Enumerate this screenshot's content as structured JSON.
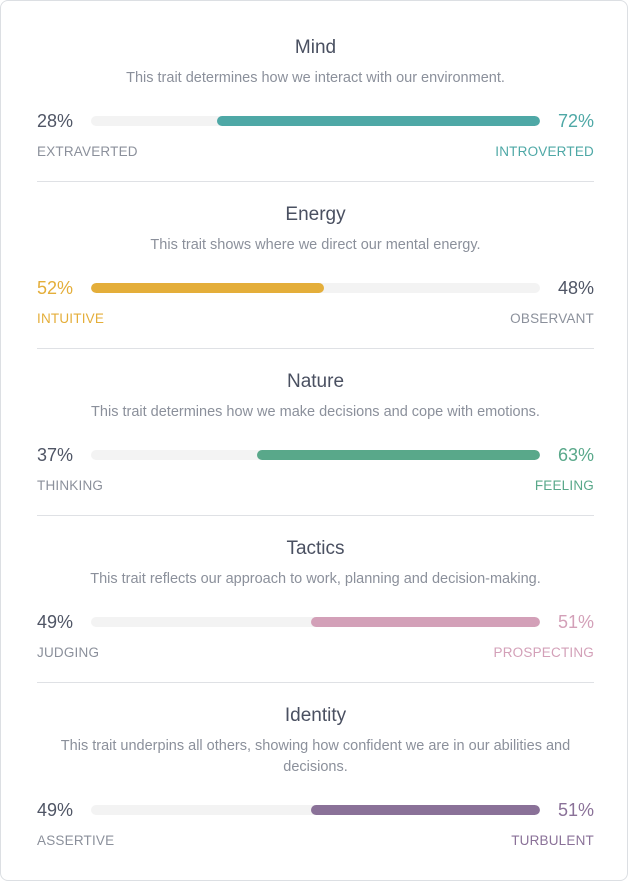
{
  "traits": [
    {
      "title": "Mind",
      "description": "This trait determines how we interact with our environment.",
      "left_label": "EXTRAVERTED",
      "right_label": "INTROVERTED",
      "left_pct": "28%",
      "right_pct": "72%",
      "dominant": "right",
      "dominant_value": 72,
      "color": "#4ea8a6"
    },
    {
      "title": "Energy",
      "description": "This trait shows where we direct our mental energy.",
      "left_label": "INTUITIVE",
      "right_label": "OBSERVANT",
      "left_pct": "52%",
      "right_pct": "48%",
      "dominant": "left",
      "dominant_value": 52,
      "color": "#e4ae3a"
    },
    {
      "title": "Nature",
      "description": "This trait determines how we make decisions and cope with emotions.",
      "left_label": "THINKING",
      "right_label": "FEELING",
      "left_pct": "37%",
      "right_pct": "63%",
      "dominant": "right",
      "dominant_value": 63,
      "color": "#59a88a"
    },
    {
      "title": "Tactics",
      "description": "This trait reflects our approach to work, planning and decision-making.",
      "left_label": "JUDGING",
      "right_label": "PROSPECTING",
      "left_pct": "49%",
      "right_pct": "51%",
      "dominant": "right",
      "dominant_value": 51,
      "color": "#d3a0b8"
    },
    {
      "title": "Identity",
      "description": "This trait underpins all others, showing how confident we are in our abilities and decisions.",
      "left_label": "ASSERTIVE",
      "right_label": "TURBULENT",
      "left_pct": "49%",
      "right_pct": "51%",
      "dominant": "right",
      "dominant_value": 51,
      "color": "#8a7198"
    }
  ]
}
